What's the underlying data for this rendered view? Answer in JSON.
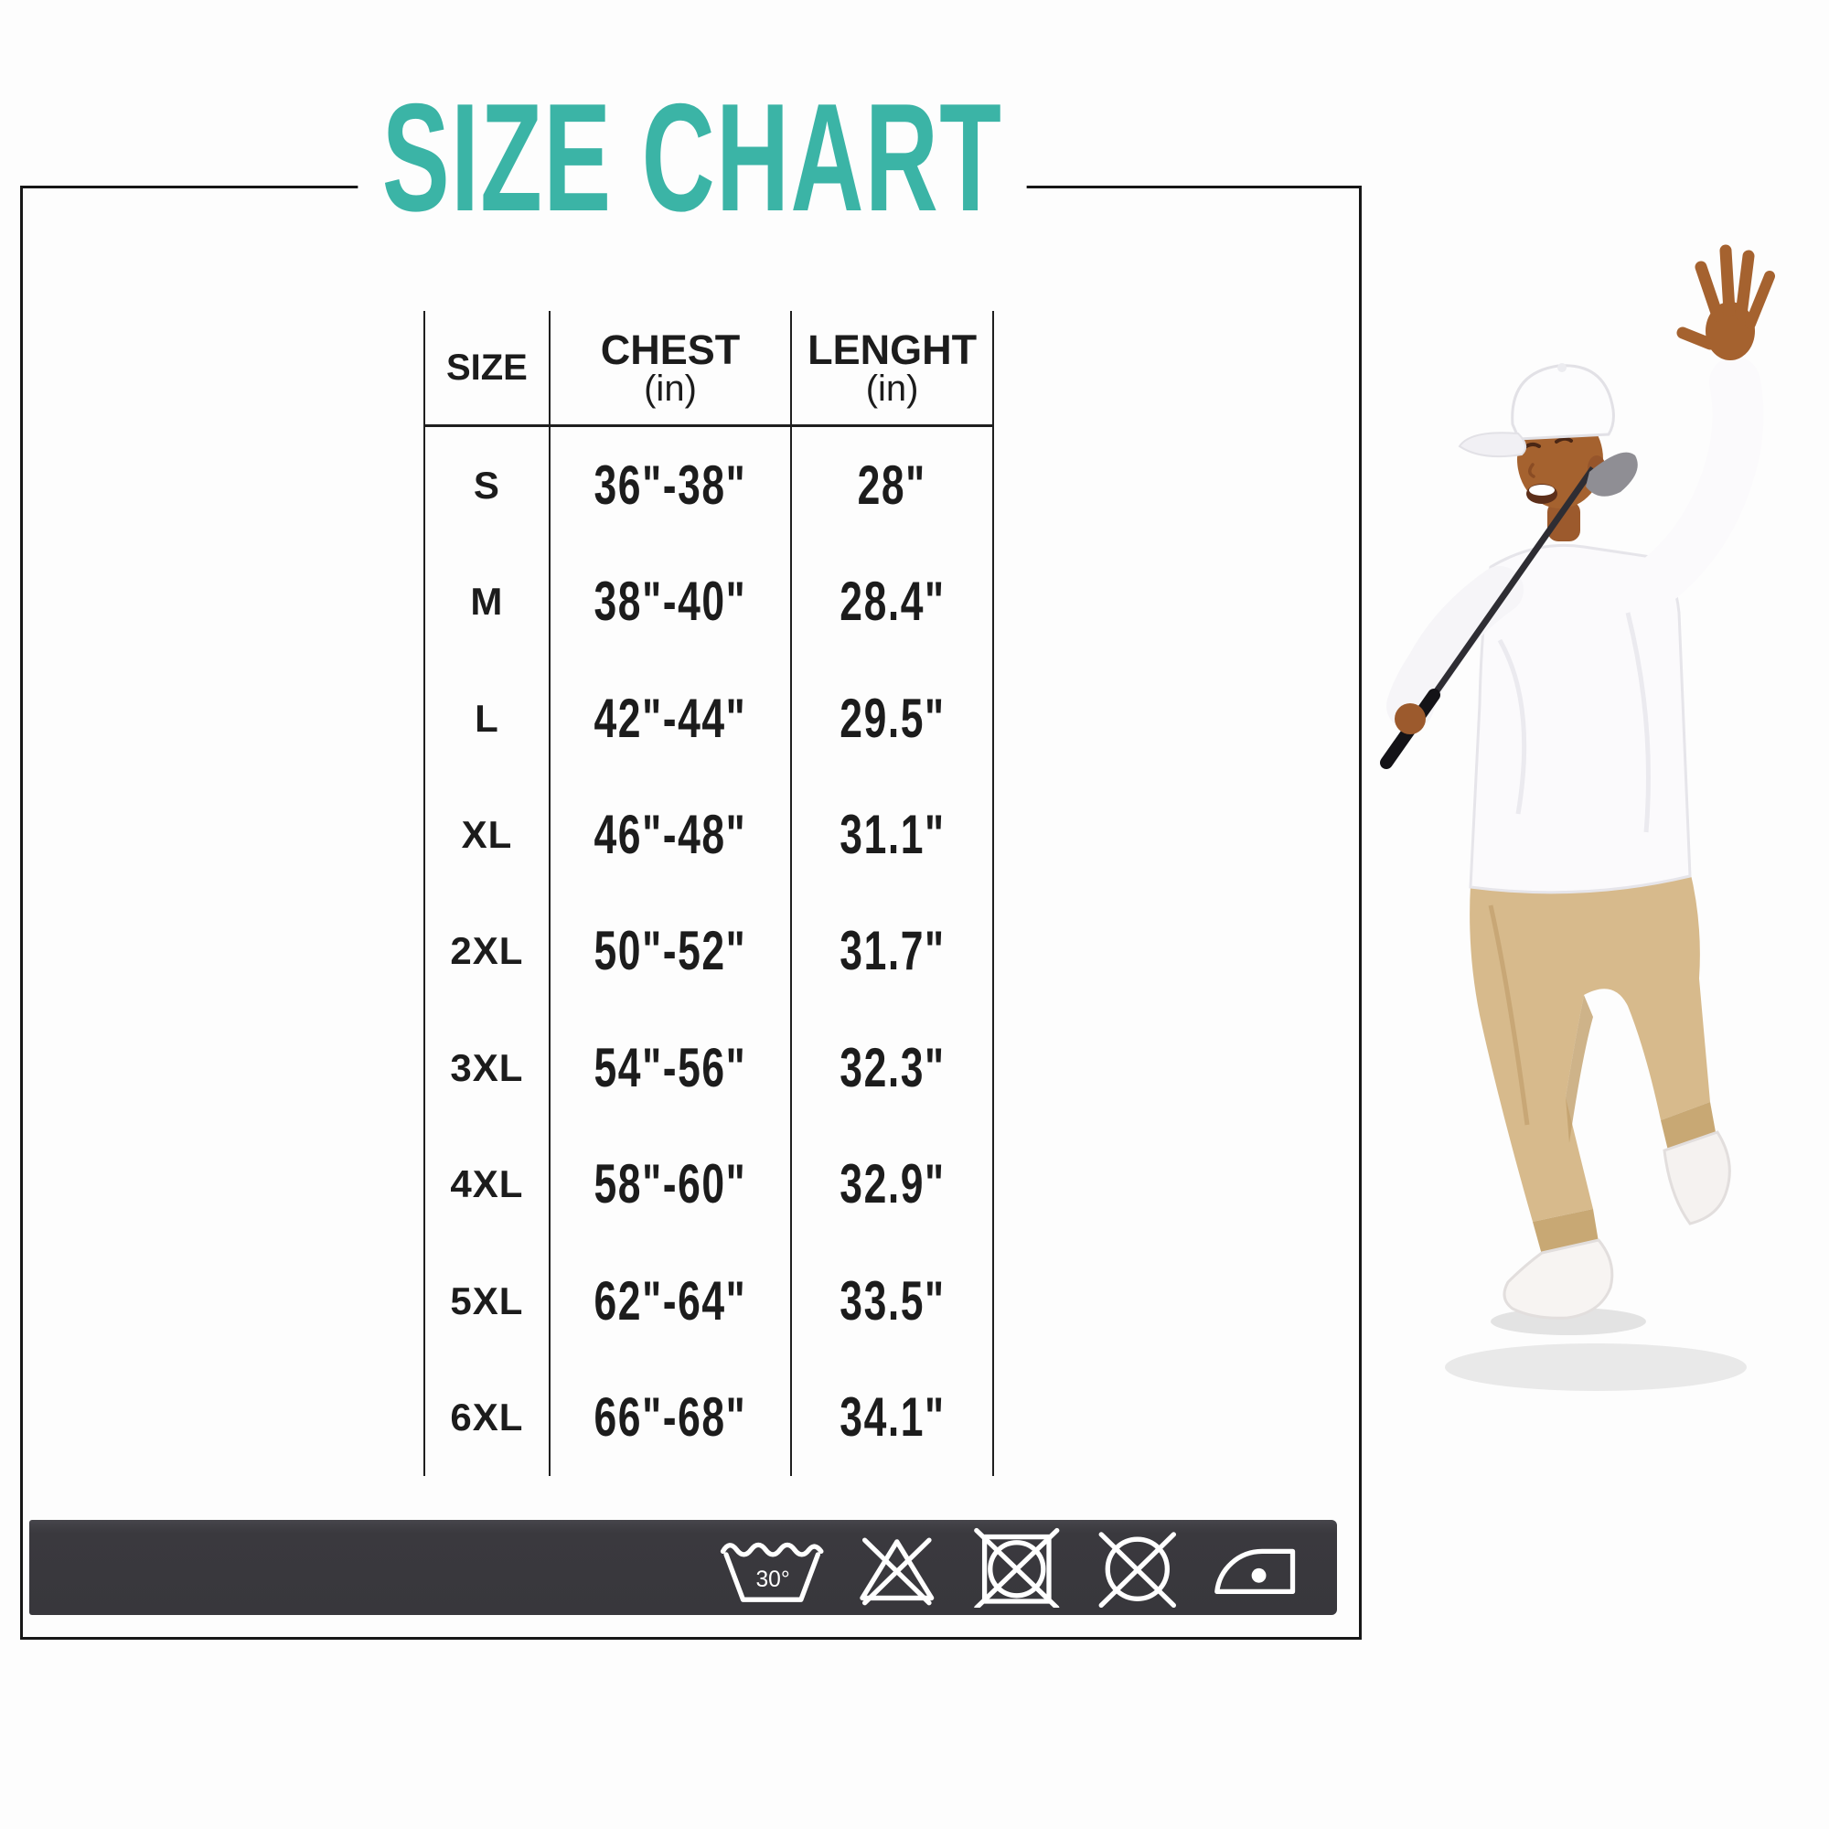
{
  "title": "SIZE CHART",
  "colors": {
    "accent_teal": "#3bb4a6",
    "bar_background": "#38373c",
    "line": "#1f1f1f"
  },
  "table": {
    "headers": [
      {
        "label": "SIZE",
        "sub": ""
      },
      {
        "label": "CHEST",
        "sub": "(in)"
      },
      {
        "label": "LENGHT",
        "sub": "(in)"
      }
    ],
    "rows": [
      {
        "size": "S",
        "chest": "36\"-38\"",
        "length": "28\""
      },
      {
        "size": "M",
        "chest": "38\"-40\"",
        "length": "28.4\""
      },
      {
        "size": "L",
        "chest": "42\"-44\"",
        "length": "29.5\""
      },
      {
        "size": "XL",
        "chest": "46\"-48\"",
        "length": "31.1\""
      },
      {
        "size": "2XL",
        "chest": "50\"-52\"",
        "length": "31.7\""
      },
      {
        "size": "3XL",
        "chest": "54\"-56\"",
        "length": "32.3\""
      },
      {
        "size": "4XL",
        "chest": "58\"-60\"",
        "length": "32.9\""
      },
      {
        "size": "5XL",
        "chest": "62\"-64\"",
        "length": "33.5\""
      },
      {
        "size": "6XL",
        "chest": "66\"-68\"",
        "length": "34.1\""
      }
    ]
  },
  "care_bar": {
    "symbols": [
      {
        "name": "machine-wash-30-icon",
        "label": "30°"
      },
      {
        "name": "do-not-bleach-icon",
        "label": ""
      },
      {
        "name": "do-not-tumble-dry-icon",
        "label": ""
      },
      {
        "name": "do-not-dry-clean-icon",
        "label": ""
      },
      {
        "name": "iron-low-heat-icon",
        "label": ""
      }
    ]
  }
}
